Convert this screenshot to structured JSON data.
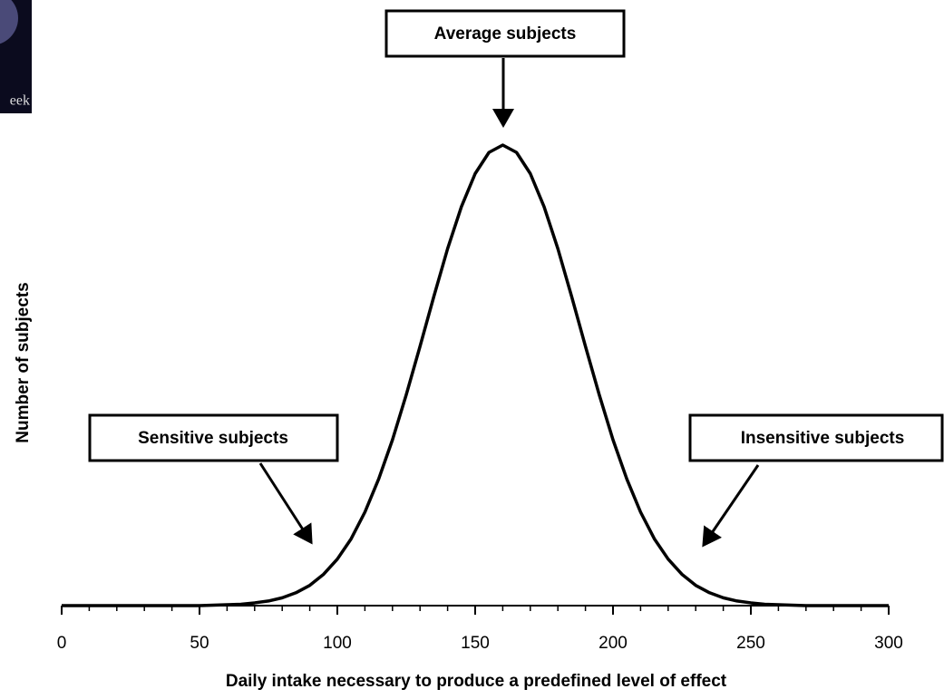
{
  "logo": {
    "text": "eek"
  },
  "chart_data": {
    "type": "line",
    "x_label": "Daily intake necessary to produce a predefined level of effect",
    "y_label": "Number of subjects",
    "annotations": [
      "Average subjects",
      "Sensitive subjects",
      "Insensitive subjects"
    ],
    "x": [
      0,
      5,
      10,
      15,
      20,
      25,
      30,
      35,
      40,
      45,
      50,
      55,
      60,
      65,
      70,
      75,
      80,
      85,
      90,
      95,
      100,
      105,
      110,
      115,
      120,
      125,
      130,
      135,
      140,
      145,
      150,
      155,
      160,
      165,
      170,
      175,
      180,
      185,
      190,
      195,
      200,
      205,
      210,
      215,
      220,
      225,
      230,
      235,
      240,
      245,
      250,
      255,
      260,
      265,
      270,
      275,
      280,
      285,
      290,
      295,
      300
    ],
    "series": [
      {
        "color": "#000000",
        "values": [
          0,
          0,
          0,
          0,
          0,
          0,
          0,
          0,
          0,
          0,
          0,
          0.001,
          0.002,
          0.003,
          0.006,
          0.01,
          0.017,
          0.028,
          0.044,
          0.068,
          0.101,
          0.145,
          0.203,
          0.275,
          0.36,
          0.458,
          0.563,
          0.671,
          0.775,
          0.866,
          0.938,
          0.984,
          1,
          0.984,
          0.938,
          0.866,
          0.775,
          0.671,
          0.563,
          0.458,
          0.36,
          0.275,
          0.203,
          0.145,
          0.101,
          0.068,
          0.044,
          0.028,
          0.017,
          0.01,
          0.006,
          0.003,
          0.002,
          0.001,
          0,
          0,
          0,
          0,
          0,
          0,
          0
        ]
      }
    ],
    "xlim": [
      0,
      300
    ],
    "ylim": [
      0,
      1.1
    ],
    "xticks": [
      0,
      50,
      100,
      150,
      200,
      250,
      300
    ],
    "xticks_minor": [
      10,
      20,
      30,
      40,
      60,
      70,
      80,
      90,
      110,
      120,
      130,
      140,
      160,
      170,
      180,
      190,
      210,
      220,
      230,
      240,
      260,
      270,
      280,
      290
    ],
    "grid": false
  }
}
